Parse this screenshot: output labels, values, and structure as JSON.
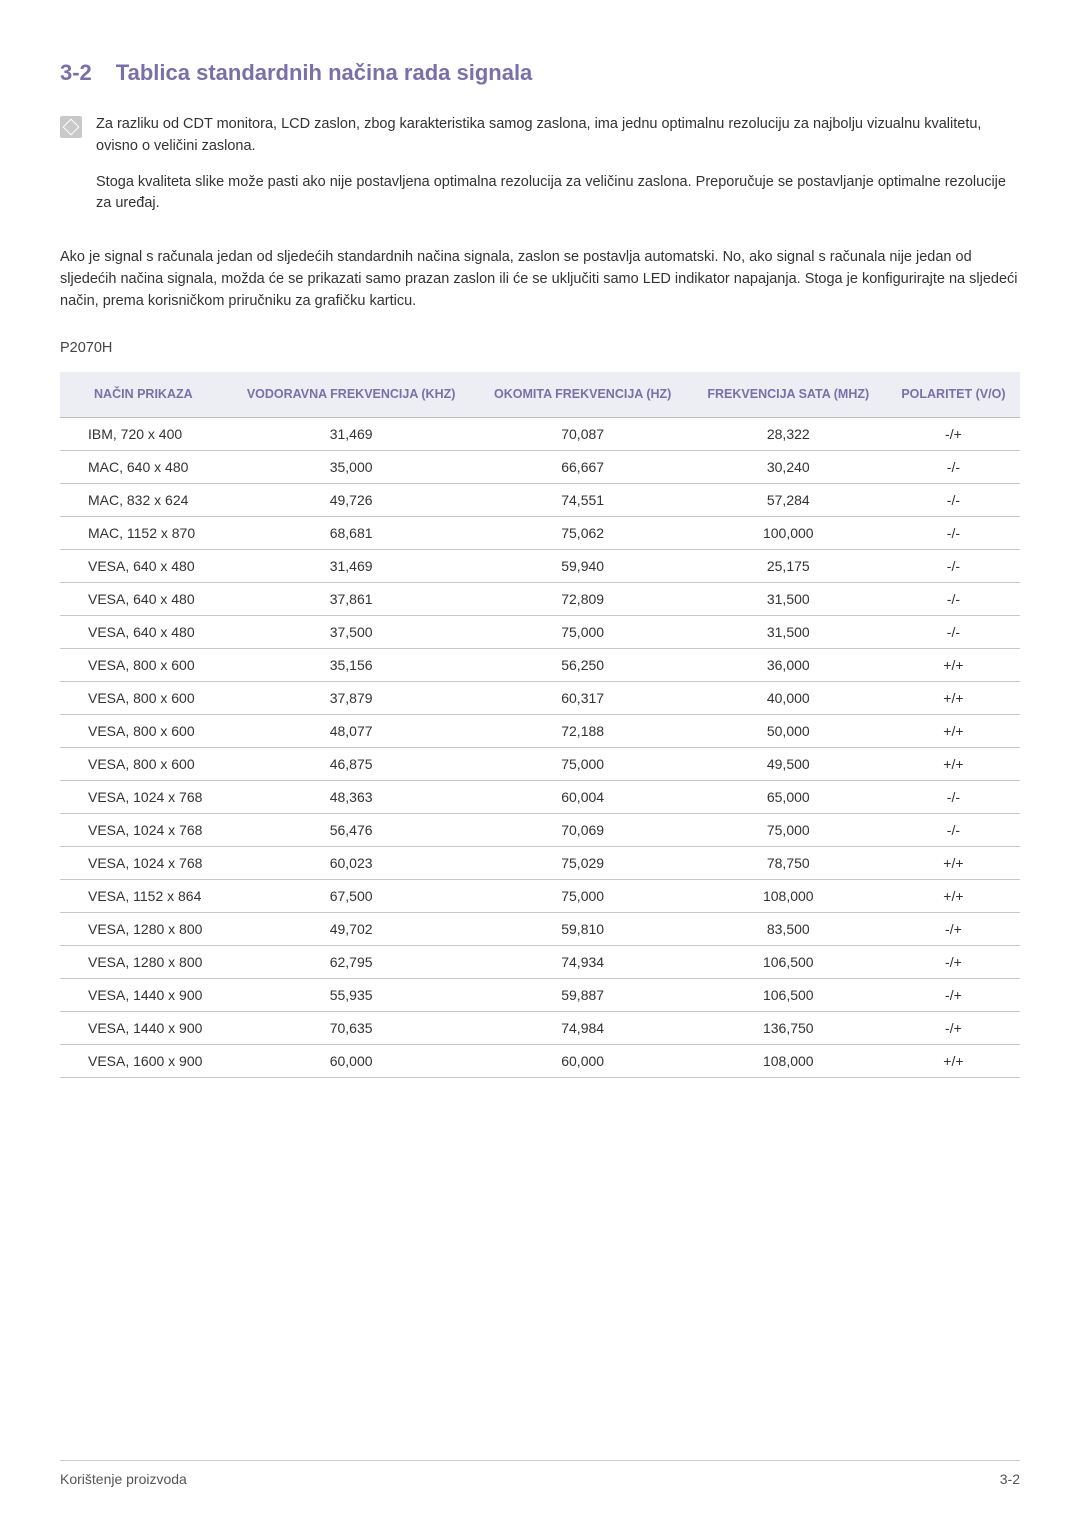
{
  "heading": {
    "num": "3-2",
    "title": "Tablica standardnih načina rada signala"
  },
  "note": {
    "p1": "Za razliku od CDT monitora, LCD zaslon, zbog karakteristika samog zaslona, ima jednu optimalnu rezoluciju za najbolju vizualnu kvalitetu, ovisno o veličini zaslona.",
    "p2": "Stoga kvaliteta slike može pasti ako nije postavljena optimalna rezolucija za veličinu zaslona. Preporučuje se postavljanje optimalne rezolucije za uređaj."
  },
  "para": "Ako je signal s računala jedan od sljedećih standardnih načina signala, zaslon se postavlja automatski. No, ako signal s računala nije jedan od sljedećih načina signala, možda će se prikazati samo prazan zaslon ili će se uključiti samo LED indikator napajanja. Stoga je konfigurirajte na sljedeći način, prema korisničkom priručniku za grafičku karticu.",
  "model": "P2070H",
  "table": {
    "columns": [
      "NAČIN PRIKAZA",
      "VODORAVNA FREKVENCIJA (KHZ)",
      "OKOMITA FREKVENCIJA (HZ)",
      "FREKVENCIJA SATA (MHZ)",
      "POLARITET (V/O)"
    ],
    "rows": [
      [
        "IBM, 720 x 400",
        "31,469",
        "70,087",
        "28,322",
        "-/+"
      ],
      [
        "MAC, 640 x 480",
        "35,000",
        "66,667",
        "30,240",
        "-/-"
      ],
      [
        "MAC, 832 x 624",
        "49,726",
        "74,551",
        "57,284",
        "-/-"
      ],
      [
        "MAC, 1152 x 870",
        "68,681",
        "75,062",
        "100,000",
        "-/-"
      ],
      [
        "VESA, 640 x 480",
        "31,469",
        "59,940",
        "25,175",
        "-/-"
      ],
      [
        "VESA, 640 x 480",
        "37,861",
        "72,809",
        "31,500",
        "-/-"
      ],
      [
        "VESA, 640 x 480",
        "37,500",
        "75,000",
        "31,500",
        "-/-"
      ],
      [
        "VESA, 800 x 600",
        "35,156",
        "56,250",
        "36,000",
        "+/+"
      ],
      [
        "VESA, 800 x 600",
        "37,879",
        "60,317",
        "40,000",
        "+/+"
      ],
      [
        "VESA, 800 x 600",
        "48,077",
        "72,188",
        "50,000",
        "+/+"
      ],
      [
        "VESA, 800 x 600",
        "46,875",
        "75,000",
        "49,500",
        "+/+"
      ],
      [
        "VESA, 1024 x 768",
        "48,363",
        "60,004",
        "65,000",
        "-/-"
      ],
      [
        "VESA, 1024 x 768",
        "56,476",
        "70,069",
        "75,000",
        "-/-"
      ],
      [
        "VESA, 1024 x 768",
        "60,023",
        "75,029",
        "78,750",
        "+/+"
      ],
      [
        "VESA, 1152 x 864",
        "67,500",
        "75,000",
        "108,000",
        "+/+"
      ],
      [
        "VESA, 1280 x 800",
        "49,702",
        "59,810",
        "83,500",
        "-/+"
      ],
      [
        "VESA, 1280 x 800",
        "62,795",
        "74,934",
        "106,500",
        "-/+"
      ],
      [
        "VESA, 1440 x 900",
        "55,935",
        "59,887",
        "106,500",
        "-/+"
      ],
      [
        "VESA, 1440 x 900",
        "70,635",
        "74,984",
        "136,750",
        "-/+"
      ],
      [
        "VESA, 1600 x 900",
        "60,000",
        "60,000",
        "108,000",
        "+/+"
      ]
    ]
  },
  "footer": {
    "left": "Korištenje proizvoda",
    "right": "3-2"
  },
  "colors": {
    "heading": "#7a6fa8",
    "th_bg": "#eceef4",
    "row_border": "#c7c7c7"
  }
}
